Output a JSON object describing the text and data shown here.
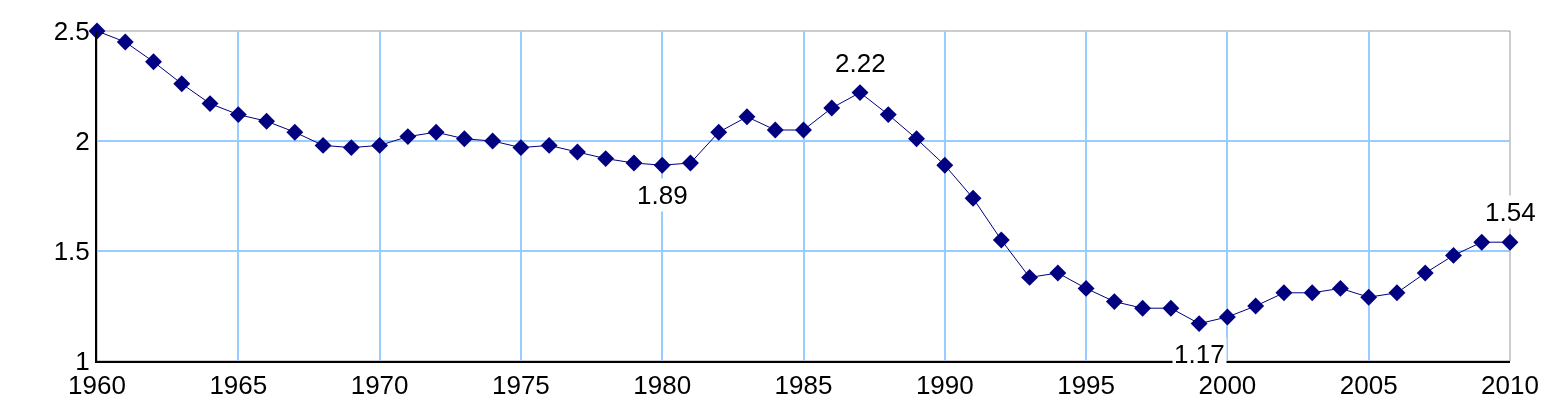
{
  "chart_data": {
    "type": "line",
    "x": [
      1960,
      1961,
      1962,
      1963,
      1964,
      1965,
      1966,
      1967,
      1968,
      1969,
      1970,
      1971,
      1972,
      1973,
      1974,
      1975,
      1976,
      1977,
      1978,
      1979,
      1980,
      1981,
      1982,
      1983,
      1984,
      1985,
      1986,
      1987,
      1988,
      1989,
      1990,
      1991,
      1992,
      1993,
      1994,
      1995,
      1996,
      1997,
      1998,
      1999,
      2000,
      2001,
      2002,
      2003,
      2004,
      2005,
      2006,
      2007,
      2008,
      2009,
      2010
    ],
    "series": [
      {
        "color": "#000080",
        "values": [
          2.5,
          2.45,
          2.36,
          2.26,
          2.17,
          2.12,
          2.09,
          2.04,
          1.98,
          1.97,
          1.98,
          2.02,
          2.04,
          2.01,
          2.0,
          1.97,
          1.98,
          1.95,
          1.92,
          1.9,
          1.89,
          1.9,
          2.04,
          2.11,
          2.05,
          2.05,
          2.15,
          2.22,
          2.12,
          2.01,
          1.89,
          1.74,
          1.55,
          1.38,
          1.4,
          1.33,
          1.27,
          1.24,
          1.24,
          1.17,
          1.2,
          1.25,
          1.31,
          1.31,
          1.33,
          1.29,
          1.31,
          1.4,
          1.48,
          1.54,
          1.54
        ]
      }
    ],
    "annotations": [
      {
        "text": "1.89",
        "x": 1980,
        "y": 1.89
      },
      {
        "text": "2.22",
        "x": 1987,
        "y": 2.22
      },
      {
        "text": "1.17",
        "x": 1999,
        "y": 1.17
      },
      {
        "text": "1.54",
        "x": 2010,
        "y": 1.54
      }
    ],
    "xlim": [
      1960,
      2010
    ],
    "xticks": [
      1960,
      1965,
      1970,
      1975,
      1980,
      1985,
      1990,
      1995,
      2000,
      2005,
      2010
    ],
    "ylim": [
      1,
      2.5
    ],
    "yticks": [
      1,
      1.5,
      2,
      2.5
    ],
    "grid": true,
    "legend": false,
    "marker": "diamond",
    "line_style": "solid"
  }
}
